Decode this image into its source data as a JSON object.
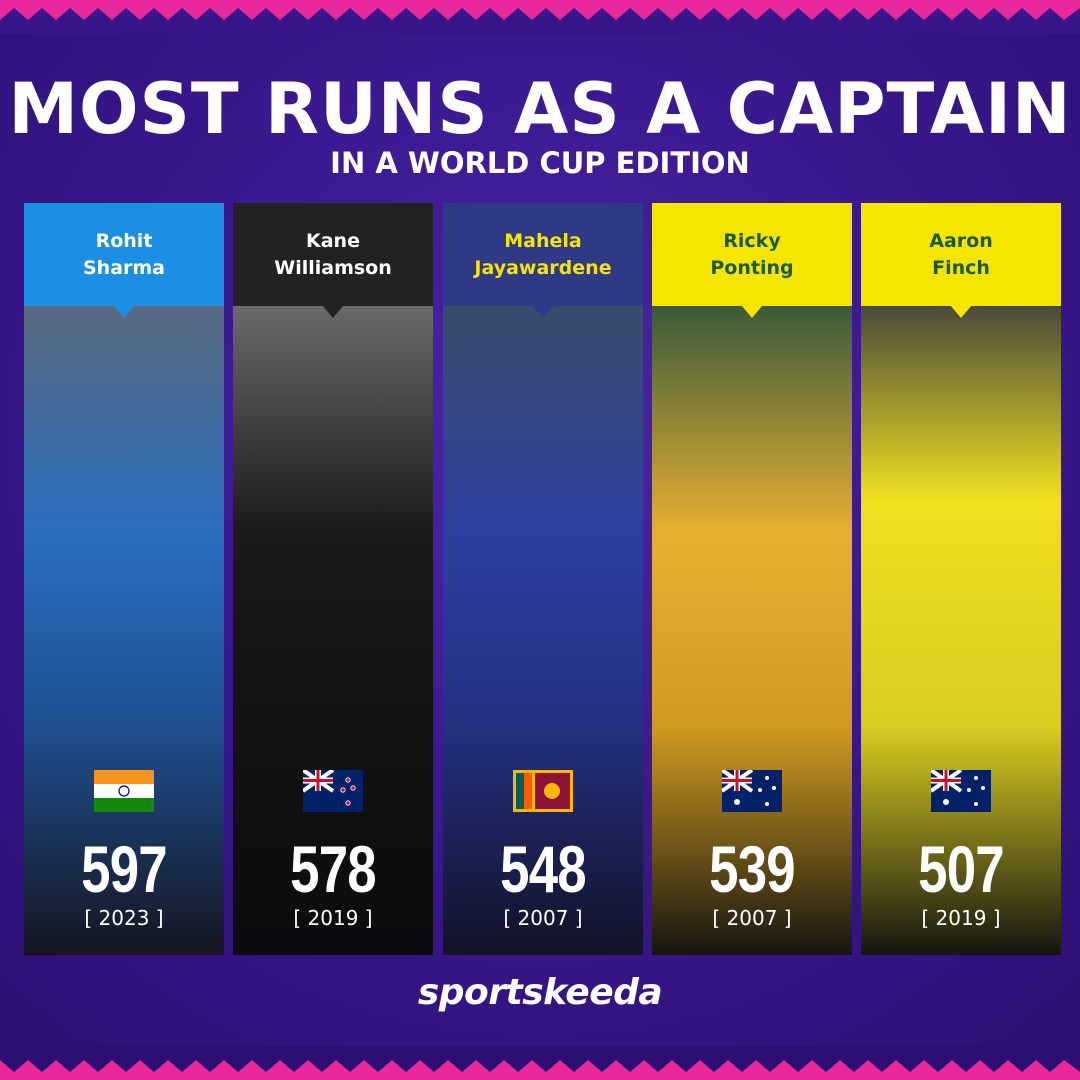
{
  "header": {
    "title": "MOST RUNS AS A CAPTAIN",
    "subtitle": "IN A WORLD CUP EDITION"
  },
  "players": [
    {
      "name": [
        "Rohit",
        "Sharma"
      ],
      "runs": 597,
      "year": "[ 2023 ]"
    },
    {
      "name": [
        "Kane",
        "Williamson"
      ],
      "runs": 578,
      "year": "[ 2019 ]"
    },
    {
      "name": [
        "Mahela",
        "Jayawardene"
      ],
      "runs": 548,
      "year": "[ 2007 ]"
    },
    {
      "name": [
        "Ricky",
        "Ponting"
      ],
      "runs": 539,
      "year": "[ 2007 ]"
    },
    {
      "name": [
        "Aaron",
        "Finch"
      ],
      "runs": 507,
      "year": "[ 2019 ]"
    }
  ],
  "footer": {
    "brand": "sportskeeda"
  }
}
